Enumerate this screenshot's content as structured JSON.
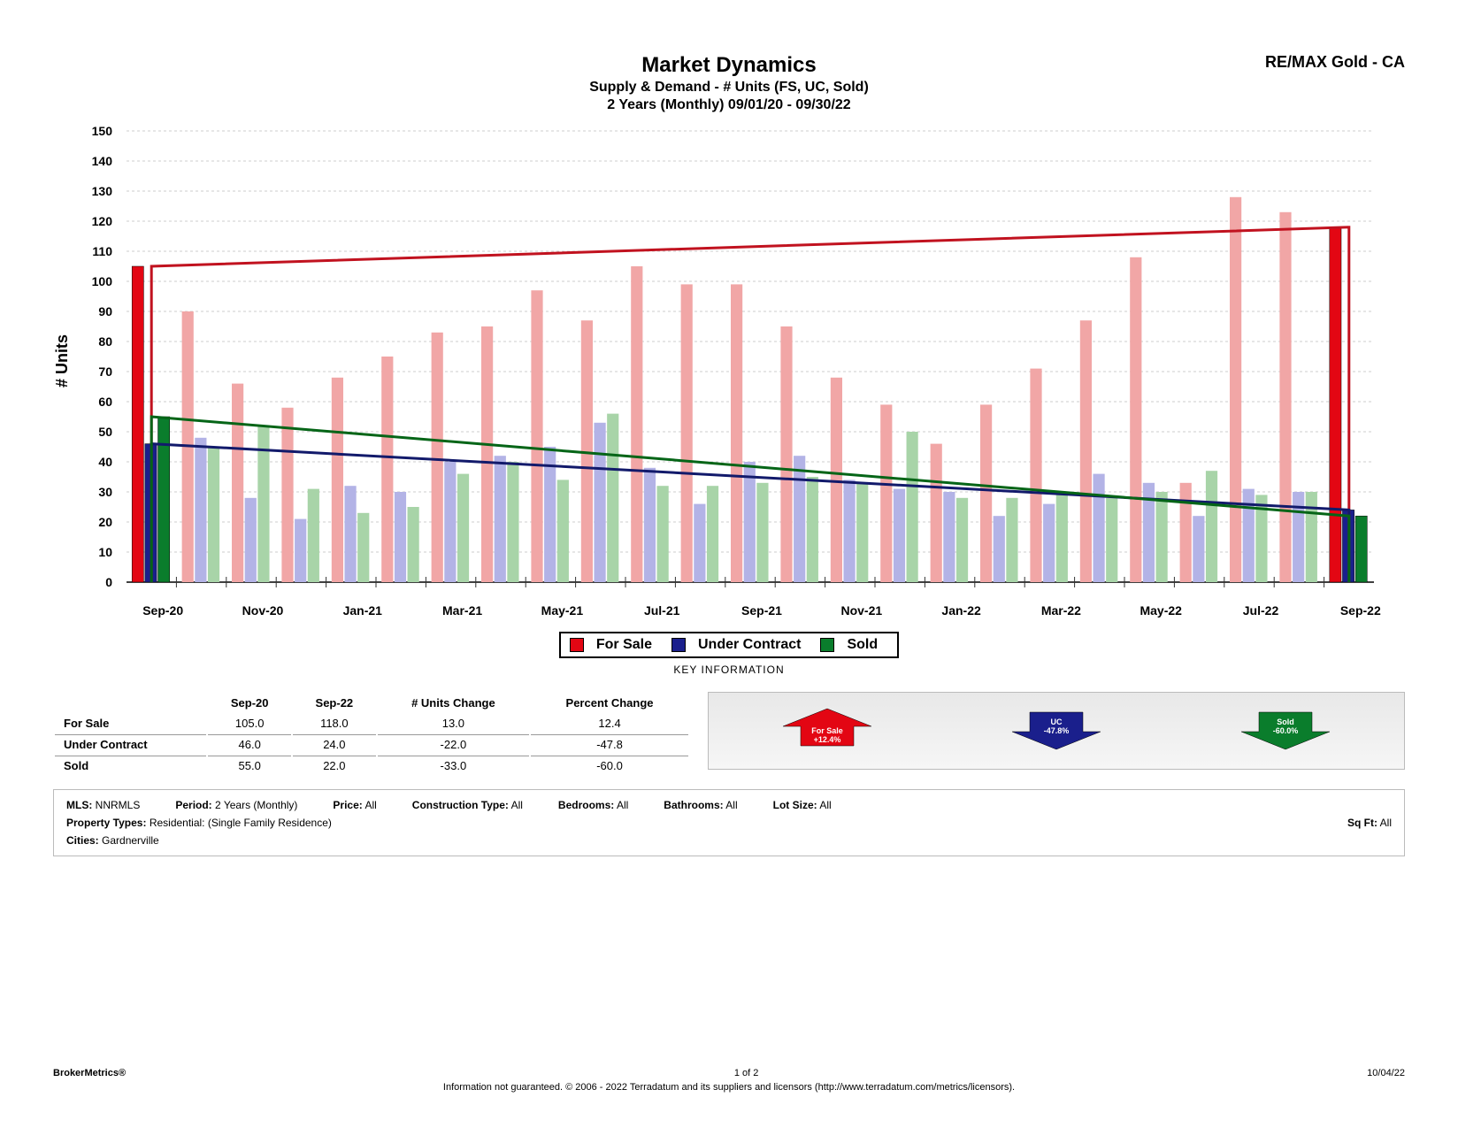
{
  "header": {
    "brand": "RE/MAX Gold - CA",
    "title": "Market Dynamics",
    "subtitle1": "Supply & Demand - # Units (FS, UC, Sold)",
    "subtitle2": "2 Years (Monthly) 09/01/20 - 09/30/22"
  },
  "chart": {
    "type": "grouped-bar-with-trend",
    "y_label": "# Units",
    "ylim": [
      0,
      150
    ],
    "ytick_step": 10,
    "yticks": [
      0,
      10,
      20,
      30,
      40,
      50,
      60,
      70,
      80,
      90,
      100,
      110,
      120,
      130,
      140,
      150
    ],
    "grid_color": "#cccccc",
    "background_color": "#ffffff",
    "x_labels_shown": [
      "Sep-20",
      "Nov-20",
      "Jan-21",
      "Mar-21",
      "May-21",
      "Jul-21",
      "Sep-21",
      "Nov-21",
      "Jan-22",
      "Mar-22",
      "May-22",
      "Jul-22",
      "Sep-22"
    ],
    "months": [
      "Sep-20",
      "Oct-20",
      "Nov-20",
      "Dec-20",
      "Jan-21",
      "Feb-21",
      "Mar-21",
      "Apr-21",
      "May-21",
      "Jun-21",
      "Jul-21",
      "Aug-21",
      "Sep-21",
      "Oct-21",
      "Nov-21",
      "Dec-21",
      "Jan-22",
      "Feb-22",
      "Mar-22",
      "Apr-22",
      "May-22",
      "Jun-22",
      "Jul-22",
      "Aug-22",
      "Sep-22"
    ],
    "series": {
      "for_sale": {
        "label": "For Sale",
        "bar_color": "#f1a6a6",
        "highlight_color": "#e30613",
        "trend_color": "#c1121f",
        "values": [
          105,
          90,
          66,
          58,
          68,
          75,
          83,
          85,
          97,
          87,
          105,
          99,
          99,
          85,
          68,
          59,
          46,
          59,
          71,
          87,
          108,
          33,
          128,
          123,
          118
        ],
        "trend": {
          "start": 105,
          "end": 118
        }
      },
      "under_contract": {
        "label": "Under Contract",
        "bar_color": "#b3b3e6",
        "highlight_color": "#1a1f8c",
        "trend_color": "#121a6b",
        "values": [
          46,
          48,
          28,
          21,
          32,
          30,
          40,
          42,
          45,
          53,
          38,
          26,
          40,
          42,
          34,
          31,
          30,
          22,
          26,
          36,
          33,
          22,
          31,
          30,
          24
        ],
        "trend": {
          "start": 46,
          "end": 24
        }
      },
      "sold": {
        "label": "Sold",
        "bar_color": "#a8d4a8",
        "highlight_color": "#0a7d2c",
        "trend_color": "#056517",
        "values": [
          55,
          45,
          52,
          31,
          23,
          25,
          36,
          40,
          34,
          56,
          32,
          32,
          33,
          35,
          33,
          50,
          28,
          28,
          30,
          28,
          30,
          37,
          29,
          30,
          22
        ],
        "trend": {
          "start": 55,
          "end": 22
        }
      }
    },
    "bar_group_width_ratio": 0.78,
    "highlight_indices": [
      0,
      24
    ],
    "trend_line_width": 3
  },
  "legend": {
    "items": [
      {
        "label": "For Sale",
        "color": "#e30613"
      },
      {
        "label": "Under Contract",
        "color": "#1a1f8c"
      },
      {
        "label": "Sold",
        "color": "#0a7d2c"
      }
    ]
  },
  "key_info_heading": "KEY INFORMATION",
  "key_table": {
    "col_headers": [
      "",
      "Sep-20",
      "Sep-22",
      "# Units Change",
      "Percent Change"
    ],
    "rows": [
      {
        "label": "For Sale",
        "start": "105.0",
        "end": "118.0",
        "change": "13.0",
        "pct": "12.4"
      },
      {
        "label": "Under Contract",
        "start": "46.0",
        "end": "24.0",
        "change": "-22.0",
        "pct": "-47.8"
      },
      {
        "label": "Sold",
        "start": "55.0",
        "end": "22.0",
        "change": "-33.0",
        "pct": "-60.0"
      }
    ]
  },
  "indicators": [
    {
      "label": "For Sale",
      "value": "+12.4%",
      "direction": "up",
      "color": "#e30613"
    },
    {
      "label": "UC",
      "value": "-47.8%",
      "direction": "down",
      "color": "#1a1f8c"
    },
    {
      "label": "Sold",
      "value": "-60.0%",
      "direction": "down",
      "color": "#0a7d2c"
    }
  ],
  "filters": {
    "MLS": "NNRMLS",
    "Period": "2 Years (Monthly)",
    "Price": "All",
    "Construction Type": "All",
    "Bedrooms": "All",
    "Bathrooms": "All",
    "Lot Size": "All",
    "Property Types": "Residential: (Single Family Residence)",
    "Sq Ft": "All",
    "Cities": "Gardnerville"
  },
  "footer": {
    "left": "BrokerMetrics®",
    "center": "1 of 2",
    "right": "10/04/22",
    "disclaimer": "Information not guaranteed.  © 2006 - 2022 Terradatum and its suppliers and licensors (http://www.terradatum.com/metrics/licensors)."
  }
}
